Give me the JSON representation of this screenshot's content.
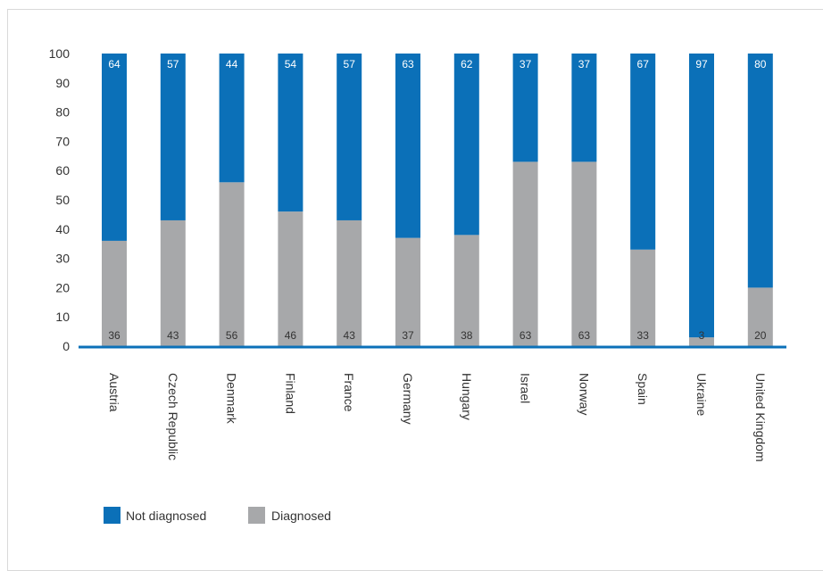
{
  "chart_data": {
    "type": "bar",
    "stacked": true,
    "categories": [
      "Austria",
      "Czech Republic",
      "Denmark",
      "Finland",
      "France",
      "Germany",
      "Hungary",
      "Israel",
      "Norway",
      "Spain",
      "Ukraine",
      "United Kingdom"
    ],
    "series": [
      {
        "name": "Diagnosed",
        "values": [
          36,
          43,
          56,
          46,
          43,
          37,
          38,
          63,
          63,
          33,
          3,
          20
        ],
        "color": "#a7a8aa"
      },
      {
        "name": "Not diagnosed",
        "values": [
          64,
          57,
          44,
          54,
          57,
          63,
          62,
          37,
          37,
          67,
          97,
          80
        ],
        "color": "#0b70b8"
      }
    ],
    "ylim": [
      0,
      100
    ],
    "yticks": [
      0,
      10,
      20,
      30,
      40,
      50,
      60,
      70,
      80,
      90,
      100
    ],
    "legend": "bottom-left"
  }
}
